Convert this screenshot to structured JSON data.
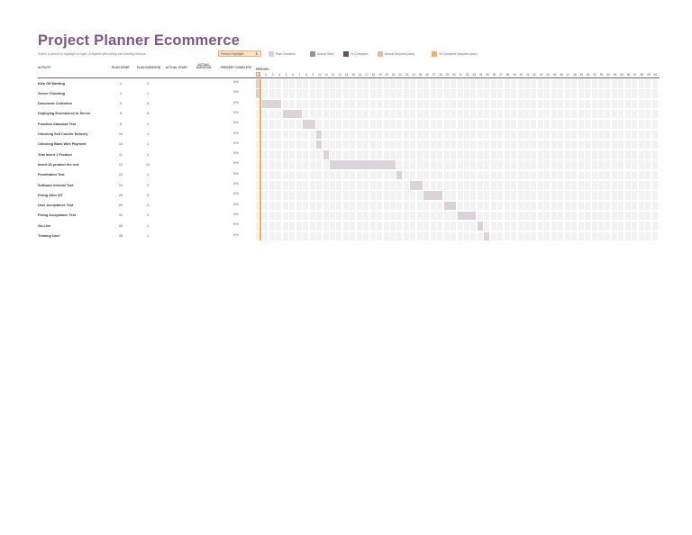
{
  "title": "Project Planner Ecommerce",
  "subtitle": "Select a period to highlight at right. A legend describing the charting follows.",
  "period_highlight": {
    "label": "Period Highlight:",
    "value": "1"
  },
  "legend": [
    {
      "label": "Plan Duration",
      "color": "#dcd3da",
      "icon": "plan-duration-swatch"
    },
    {
      "label": "Actual Start",
      "color": "#a08aa3",
      "icon": "actual-start-swatch"
    },
    {
      "label": "% Complete",
      "color": "#6b4a6e",
      "icon": "percent-complete-swatch"
    },
    {
      "label": "Actual (beyond plan)",
      "color": "#e6b9a3",
      "icon": "actual-beyond-swatch"
    },
    {
      "label": "% Complete (beyond plan)",
      "color": "#f0b15a",
      "icon": "percent-beyond-swatch"
    }
  ],
  "headers": {
    "activity": "ACTIVITY",
    "plan_start": "PLAN START",
    "plan_duration": "PLAN DURATION",
    "actual_start": "ACTUAL START",
    "actual_duration": "ACTUAL DURATION",
    "percent_complete": "PERCENT COMPLETE",
    "periods": "PERIODS"
  },
  "periods": [
    "1",
    "2",
    "3",
    "4",
    "5",
    "6",
    "7",
    "8",
    "9",
    "10",
    "11",
    "12",
    "13",
    "14",
    "15",
    "16",
    "17",
    "18",
    "19",
    "20",
    "21",
    "22",
    "23",
    "24",
    "25",
    "26",
    "27",
    "28",
    "29",
    "30",
    "31",
    "32",
    "33",
    "34",
    "35",
    "36",
    "37",
    "38",
    "39",
    "40",
    "41",
    "42",
    "43",
    "44",
    "45",
    "46",
    "47",
    "48",
    "49",
    "50",
    "51",
    "52",
    "53",
    "54",
    "55",
    "56",
    "57",
    "58",
    "59",
    "60"
  ],
  "tasks": [
    {
      "activity": "Kick Off Meeting",
      "plan_start": "1",
      "plan_duration": "1",
      "percent": "0%",
      "start": 1,
      "dur": 1
    },
    {
      "activity": "Server Checking",
      "plan_start": "1",
      "plan_duration": "1",
      "percent": "0%",
      "start": 1,
      "dur": 1
    },
    {
      "activity": "Document Collection",
      "plan_start": "2",
      "plan_duration": "3",
      "percent": "0%",
      "start": 2,
      "dur": 3
    },
    {
      "activity": "Deploying Ecommerce to Server",
      "plan_start": "5",
      "plan_duration": "3",
      "percent": "0%",
      "start": 5,
      "dur": 3
    },
    {
      "activity": "Function Standard Test",
      "plan_start": "8",
      "plan_duration": "2",
      "percent": "0%",
      "start": 8,
      "dur": 2
    },
    {
      "activity": "Checking Self Courier Delivery",
      "plan_start": "10",
      "plan_duration": "1",
      "percent": "0%",
      "start": 10,
      "dur": 1
    },
    {
      "activity": "Checking Bank Wire Payment",
      "plan_start": "10",
      "plan_duration": "1",
      "percent": "0%",
      "start": 10,
      "dur": 1
    },
    {
      "activity": "Trial Insert 1 Product",
      "plan_start": "11",
      "plan_duration": "1",
      "percent": "0%",
      "start": 11,
      "dur": 1
    },
    {
      "activity": "Insert 20 product the rest",
      "plan_start": "12",
      "plan_duration": "10",
      "percent": "0%",
      "start": 12,
      "dur": 10
    },
    {
      "activity": "Penetration Test",
      "plan_start": "22",
      "plan_duration": "1",
      "percent": "0%",
      "start": 22,
      "dur": 1
    },
    {
      "activity": "Software Internal Test",
      "plan_start": "24",
      "plan_duration": "2",
      "percent": "0%",
      "start": 24,
      "dur": 2
    },
    {
      "activity": "Fixing After SIT",
      "plan_start": "26",
      "plan_duration": "3",
      "percent": "0%",
      "start": 26,
      "dur": 3
    },
    {
      "activity": "User Acceptance Test",
      "plan_start": "29",
      "plan_duration": "2",
      "percent": "0%",
      "start": 29,
      "dur": 2
    },
    {
      "activity": "Fixing Acceptance Test",
      "plan_start": "31",
      "plan_duration": "3",
      "percent": "0%",
      "start": 31,
      "dur": 3
    },
    {
      "activity": "Go-Live",
      "plan_start": "34",
      "plan_duration": "1",
      "percent": "0%",
      "start": 34,
      "dur": 1
    },
    {
      "activity": "Training User",
      "plan_start": "35",
      "plan_duration": "1",
      "percent": "0%",
      "start": 35,
      "dur": 1
    }
  ]
}
